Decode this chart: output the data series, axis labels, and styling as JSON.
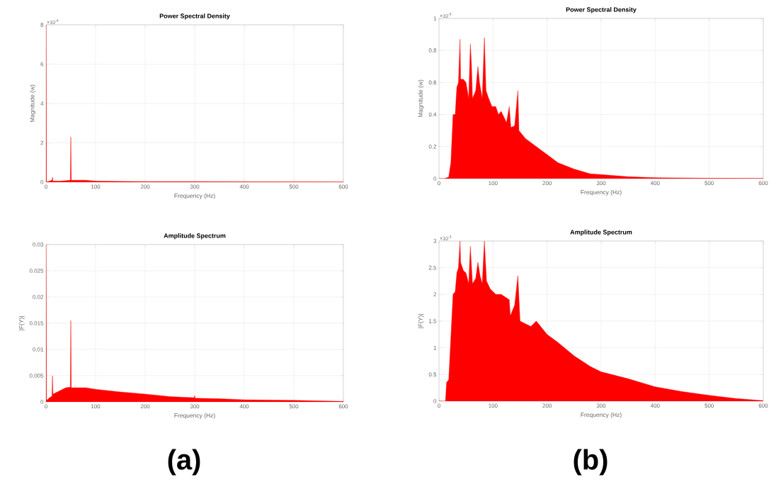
{
  "chart_data": [
    {
      "type": "area",
      "title": "Power Spectral Density",
      "xlabel": "Frequency (Hz)",
      "ylabel": "Magnitude (w)",
      "annotations": [
        "×10$^{-4}$"
      ],
      "color": "#ff0000",
      "grid": true,
      "x": [
        0,
        1,
        12,
        13,
        14,
        30,
        49,
        50,
        51,
        80,
        100,
        200,
        300,
        400,
        600
      ],
      "values": [
        8,
        0,
        0.1,
        0.25,
        0.05,
        0.05,
        0.1,
        2.3,
        0.1,
        0.1,
        0.05,
        0.03,
        0.03,
        0.02,
        0.01
      ],
      "xlim": [
        0,
        600
      ],
      "xticks": [
        0,
        100,
        200,
        300,
        400,
        500,
        600
      ],
      "ylim": [
        0,
        8
      ],
      "yticks": [
        0,
        2,
        4,
        6,
        8
      ]
    },
    {
      "type": "area",
      "title": "Power Spectral Density",
      "xlabel": "Frequency (Hz)",
      "ylabel": "Magnitude (w)",
      "annotations": [
        "×10$^{-5}$"
      ],
      "color": "#ff0000",
      "grid": true,
      "x": [
        0,
        10,
        18,
        22,
        26,
        30,
        33,
        36,
        39,
        40,
        45,
        50,
        55,
        58,
        60,
        62,
        68,
        72,
        75,
        80,
        84,
        87,
        92,
        98,
        105,
        110,
        115,
        125,
        130,
        133,
        140,
        146,
        148,
        160,
        180,
        200,
        220,
        250,
        280,
        300,
        350,
        400,
        500,
        600
      ],
      "values": [
        0,
        0,
        0.01,
        0.1,
        0.4,
        0.4,
        0.57,
        0.6,
        0.87,
        0.62,
        0.62,
        0.6,
        0.5,
        0.84,
        0.72,
        0.5,
        0.55,
        0.7,
        0.6,
        0.5,
        0.88,
        0.55,
        0.5,
        0.45,
        0.45,
        0.4,
        0.42,
        0.35,
        0.45,
        0.32,
        0.33,
        0.55,
        0.3,
        0.25,
        0.2,
        0.15,
        0.1,
        0.06,
        0.03,
        0.025,
        0.012,
        0.006,
        0.002,
        0.001
      ],
      "xlim": [
        0,
        600
      ],
      "xticks": [
        0,
        100,
        200,
        300,
        400,
        500,
        600
      ],
      "ylim": [
        0,
        1
      ],
      "yticks": [
        0,
        0.2,
        0.4,
        0.6,
        0.8,
        1
      ]
    },
    {
      "type": "area",
      "title": "Amplitude Spectrum",
      "xlabel": "Frequency (Hz)",
      "ylabel": "|F(Y)|",
      "annotations": [
        "(a)"
      ],
      "color": "#ff0000",
      "grid": true,
      "x": [
        0,
        1,
        10,
        12,
        13,
        14,
        25,
        40,
        49,
        50,
        51,
        80,
        100,
        150,
        200,
        250,
        299,
        300,
        301,
        350,
        400,
        500,
        600
      ],
      "values": [
        0.03,
        0.0003,
        0.001,
        0.001,
        0.005,
        0.0015,
        0.002,
        0.0027,
        0.0028,
        0.0155,
        0.0027,
        0.0027,
        0.0024,
        0.0019,
        0.0015,
        0.001,
        0.0008,
        0.0012,
        0.0007,
        0.0006,
        0.0004,
        0.0003,
        0.0001
      ],
      "xlim": [
        0,
        600
      ],
      "xticks": [
        0,
        100,
        200,
        300,
        400,
        500,
        600
      ],
      "ylim": [
        0,
        0.03
      ],
      "yticks": [
        0,
        0.005,
        0.01,
        0.015,
        0.02,
        0.025,
        0.03
      ]
    },
    {
      "type": "area",
      "title": "Amplitude Spectrum",
      "xlabel": "Frequency (Hz)",
      "ylabel": "|F(Y)|",
      "annotations": [
        "×10$^{-3}$",
        "(b)"
      ],
      "color": "#ff0000",
      "grid": true,
      "x": [
        0,
        12,
        14,
        18,
        22,
        26,
        30,
        33,
        36,
        39,
        40,
        45,
        50,
        55,
        58,
        62,
        68,
        72,
        76,
        80,
        84,
        88,
        95,
        105,
        115,
        130,
        132,
        140,
        146,
        150,
        170,
        180,
        200,
        220,
        250,
        280,
        300,
        350,
        400,
        450,
        500,
        550,
        600
      ],
      "values": [
        0,
        0,
        0.35,
        0.4,
        1.2,
        2.0,
        2.05,
        2.4,
        2.5,
        3.0,
        2.6,
        2.45,
        2.4,
        2.2,
        2.9,
        2.2,
        2.3,
        2.6,
        2.35,
        2.2,
        3.0,
        2.25,
        2.1,
        2.0,
        2.0,
        1.9,
        1.6,
        1.8,
        2.35,
        1.5,
        1.4,
        1.5,
        1.25,
        1.1,
        0.85,
        0.65,
        0.55,
        0.42,
        0.27,
        0.18,
        0.11,
        0.05,
        0.01
      ],
      "xlim": [
        0,
        600
      ],
      "xticks": [
        0,
        100,
        200,
        300,
        400,
        500,
        600
      ],
      "ylim": [
        0,
        3
      ],
      "yticks": [
        0,
        0.5,
        1,
        1.5,
        2,
        2.5,
        3
      ]
    }
  ]
}
